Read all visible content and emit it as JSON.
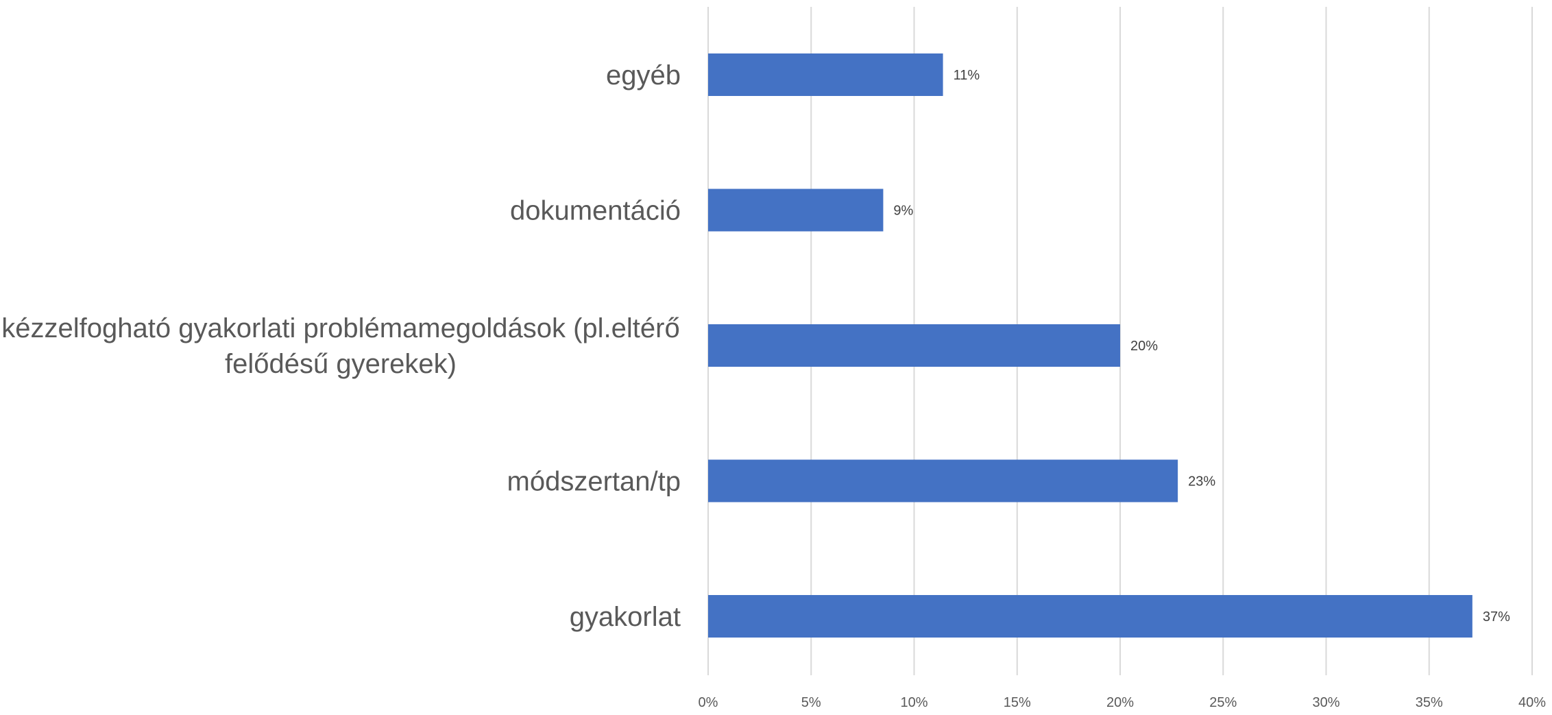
{
  "chart_data": {
    "type": "bar",
    "orientation": "horizontal",
    "title": "",
    "xlabel": "",
    "ylabel": "",
    "categories": [
      "egyéb",
      "dokumentáció",
      "kézzelfogható gyakorlati problémamegoldások (pl.eltérő felődésű gyerekek)",
      "módszertan/tp",
      "gyakorlat"
    ],
    "category_label_lines": [
      [
        "egyéb"
      ],
      [
        "dokumentáció"
      ],
      [
        "kézzelfogható gyakorlati problémamegoldások (pl.eltérő",
        "felődésű gyerekek)"
      ],
      [
        "módszertan/tp"
      ],
      [
        "gyakorlat"
      ]
    ],
    "values": [
      11.4,
      8.5,
      20,
      22.8,
      37.1
    ],
    "data_labels": [
      "11%",
      "9%",
      "20%",
      "23%",
      "37%"
    ],
    "xlim": [
      0,
      40
    ],
    "x_ticks": [
      0,
      5,
      10,
      15,
      20,
      25,
      30,
      35,
      40
    ],
    "x_tick_labels": [
      "0%",
      "5%",
      "10%",
      "15%",
      "20%",
      "25%",
      "30%",
      "35%",
      "40%"
    ],
    "grid": true,
    "legend": "none",
    "bar_color": "#4472C4"
  }
}
